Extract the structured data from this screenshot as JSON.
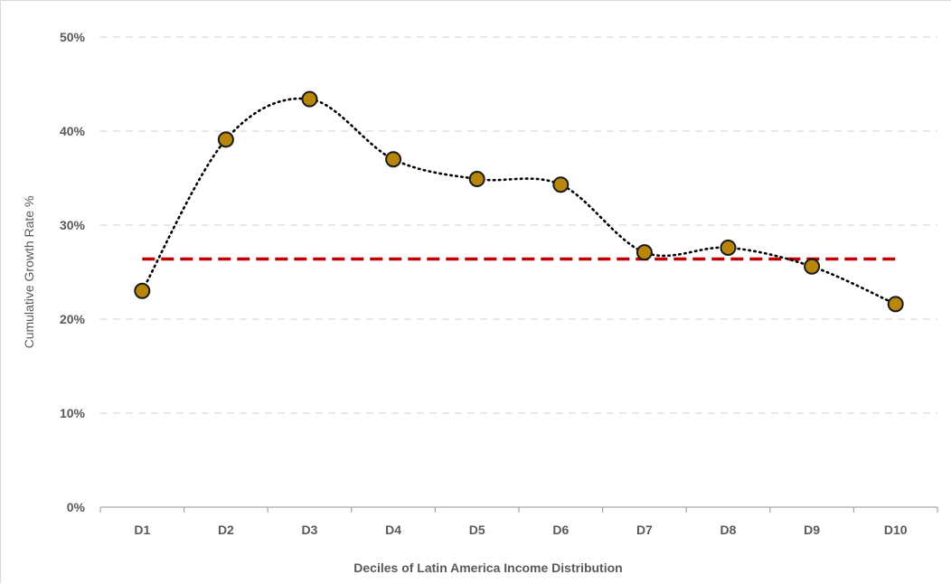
{
  "chart_data": {
    "type": "line",
    "title": "",
    "xlabel": "Deciles of Latin America Income Distribution",
    "ylabel": "Cumulative Growth Rate %",
    "categories": [
      "D1",
      "D2",
      "D3",
      "D4",
      "D5",
      "D6",
      "D7",
      "D8",
      "D9",
      "D10"
    ],
    "y_ticks": [
      "0%",
      "10%",
      "20%",
      "30%",
      "40%",
      "50%"
    ],
    "ylim": [
      0,
      50
    ],
    "grid": true,
    "series": [
      {
        "values": [
          23.0,
          39.1,
          43.4,
          37.0,
          34.9,
          34.3,
          27.1,
          27.6,
          25.6,
          21.6
        ],
        "line_style": "dotted-smooth",
        "line_color": "#000000",
        "marker_color": "#b8860b"
      },
      {
        "values": [
          26.4,
          26.4,
          26.4,
          26.4,
          26.4,
          26.4,
          26.4,
          26.4,
          26.4,
          26.4
        ],
        "line_style": "dashed",
        "line_color": "#c00000"
      }
    ]
  }
}
